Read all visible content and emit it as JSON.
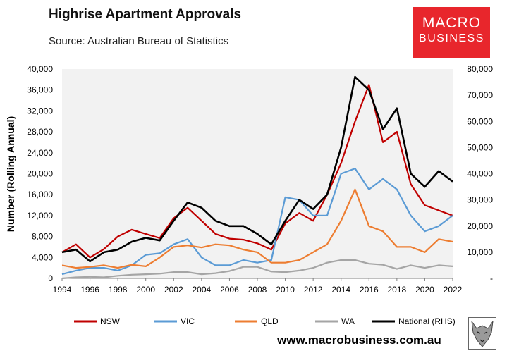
{
  "header": {
    "title": "Highrise Apartment Approvals",
    "subtitle": "Source: Australian Bureau of Statistics"
  },
  "logo": {
    "line1": "MACRO",
    "line2": "BUSINESS"
  },
  "footer": {
    "url": "www.macrobusiness.com.au"
  },
  "colors": {
    "NSW": "#c00000",
    "VIC": "#5b9bd5",
    "QLD": "#ed7d31",
    "WA": "#a5a5a5",
    "National": "#000000",
    "plot_bg": "#f2f2f2",
    "logo_bg": "#e8262c"
  },
  "icons": {
    "mascot": "wolf-icon"
  },
  "chart_data": {
    "type": "line",
    "title": "Highrise Apartment Approvals",
    "subtitle": "Source: Australian Bureau of Statistics",
    "ylabel": "Number (Rolling Annual)",
    "x_ticks": [
      1994,
      1996,
      1998,
      2000,
      2002,
      2004,
      2006,
      2008,
      2010,
      2012,
      2014,
      2016,
      2018,
      2020,
      2022
    ],
    "xlim": [
      1994,
      2022
    ],
    "ylim_left": [
      0,
      40000
    ],
    "y_ticks_left": [
      "0",
      "4,000",
      "8,000",
      "12,000",
      "16,000",
      "20,000",
      "24,000",
      "28,000",
      "32,000",
      "36,000",
      "40,000"
    ],
    "ylim_right": [
      0,
      80000
    ],
    "y_ticks_right": [
      "-",
      "10,000",
      "20,000",
      "30,000",
      "40,000",
      "50,000",
      "60,000",
      "70,000",
      "80,000"
    ],
    "grid": false,
    "legend_position": "bottom",
    "x": [
      1994,
      1995,
      1996,
      1997,
      1998,
      1999,
      2000,
      2001,
      2002,
      2003,
      2004,
      2005,
      2006,
      2007,
      2008,
      2009,
      2010,
      2011,
      2012,
      2013,
      2014,
      2015,
      2016,
      2017,
      2018,
      2019,
      2020,
      2021,
      2022
    ],
    "series": [
      {
        "name": "NSW",
        "axis": "left",
        "values": [
          5000,
          6500,
          4000,
          5600,
          8000,
          9300,
          8500,
          7700,
          11500,
          13500,
          11000,
          8500,
          7600,
          7400,
          6700,
          5500,
          10500,
          12500,
          11000,
          16000,
          22000,
          30000,
          37000,
          26000,
          28000,
          18000,
          14000,
          13000,
          12000
        ]
      },
      {
        "name": "VIC",
        "axis": "left",
        "values": [
          800,
          1500,
          2000,
          2000,
          1500,
          2500,
          4500,
          4800,
          6500,
          7500,
          4000,
          2500,
          2500,
          3500,
          3000,
          3500,
          15500,
          15000,
          12000,
          12000,
          20000,
          21000,
          17000,
          19000,
          17000,
          12000,
          9000,
          10000,
          12000
        ]
      },
      {
        "name": "QLD",
        "axis": "left",
        "values": [
          2500,
          2000,
          2200,
          2500,
          2000,
          2600,
          2300,
          4000,
          6000,
          6300,
          5900,
          6500,
          6300,
          5500,
          5000,
          3000,
          3000,
          3500,
          5000,
          6500,
          11000,
          17000,
          10000,
          9000,
          6000,
          6000,
          5000,
          7500,
          7000
        ]
      },
      {
        "name": "WA",
        "axis": "left",
        "values": [
          0,
          200,
          300,
          200,
          500,
          700,
          800,
          900,
          1200,
          1200,
          800,
          1000,
          1400,
          2200,
          2200,
          1300,
          1200,
          1500,
          2000,
          3000,
          3500,
          3500,
          2800,
          2600,
          1800,
          2500,
          2000,
          2500,
          2300
        ]
      },
      {
        "name": "National (RHS)",
        "axis": "right",
        "values": [
          10000,
          11000,
          6500,
          10000,
          11000,
          14000,
          15500,
          14500,
          22000,
          29000,
          27000,
          22000,
          20000,
          20000,
          17000,
          13000,
          22000,
          30000,
          26500,
          32000,
          50000,
          77000,
          72000,
          57000,
          65000,
          40000,
          35000,
          41000,
          37000
        ]
      }
    ]
  }
}
